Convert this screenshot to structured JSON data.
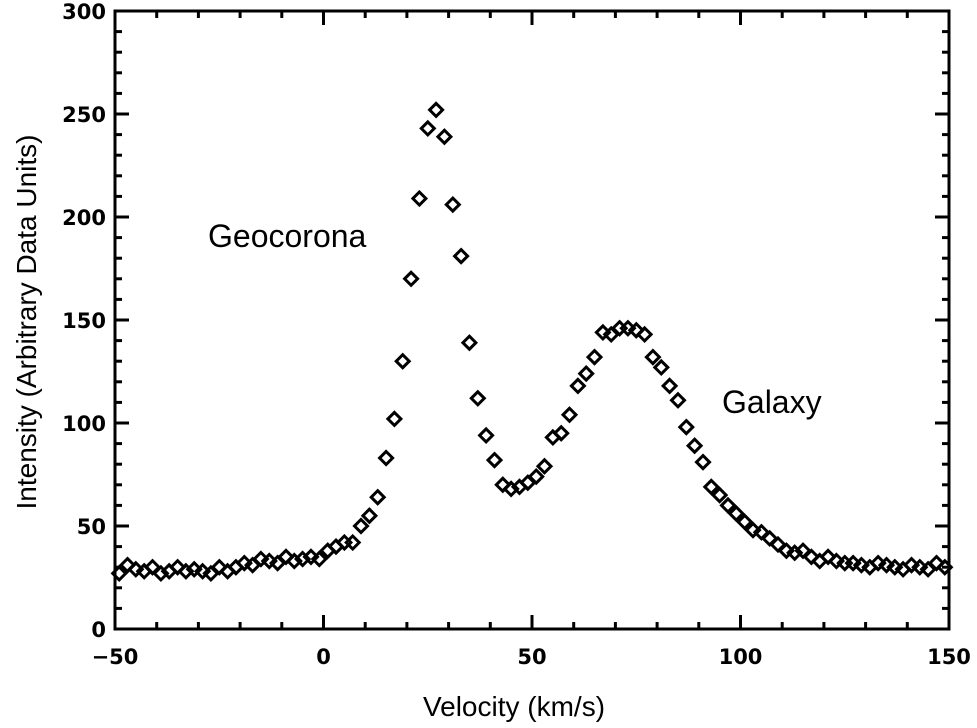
{
  "chart_data": {
    "type": "scatter",
    "title": "",
    "xlabel": "Velocity (km/s)",
    "ylabel": "Intensity (Arbitrary Data Units)",
    "xlim": [
      -50,
      150
    ],
    "ylim": [
      0,
      300
    ],
    "x_ticks": [
      -50,
      0,
      50,
      100,
      150
    ],
    "x_tick_labels": [
      "−50",
      "0",
      "50",
      "100",
      "150"
    ],
    "y_ticks": [
      0,
      50,
      100,
      150,
      200,
      250,
      300
    ],
    "y_tick_labels": [
      "0",
      "50",
      "100",
      "150",
      "200",
      "250",
      "300"
    ],
    "grid": false,
    "marker": "open-diamond",
    "annotations": [
      {
        "text": "Geocorona",
        "x": -27,
        "y": 187
      },
      {
        "text": "Galaxy",
        "x": 96,
        "y": 105
      }
    ],
    "series": [
      {
        "x": [
          -49,
          -47,
          -45,
          -43,
          -41,
          -39,
          -37,
          -35,
          -33,
          -31,
          -29,
          -27,
          -25,
          -23,
          -21,
          -19,
          -17,
          -15,
          -13,
          -11,
          -9,
          -7,
          -5,
          -3,
          -1,
          1,
          3,
          5,
          7,
          9,
          11,
          13,
          15,
          17,
          19,
          21,
          23,
          25,
          27,
          29,
          31,
          33,
          35,
          37,
          39,
          41,
          43,
          45,
          47,
          49,
          51,
          53,
          55,
          57,
          59,
          61,
          63,
          65,
          67,
          69,
          71,
          73,
          75,
          77,
          79,
          81,
          83,
          85,
          87,
          89,
          91,
          93,
          95,
          97,
          99,
          101,
          103,
          105,
          107,
          109,
          111,
          113,
          115,
          117,
          119,
          121,
          123,
          125,
          127,
          129,
          131,
          133,
          135,
          137,
          139,
          141,
          143,
          145,
          147,
          149
        ],
        "y": [
          27,
          31,
          29,
          28,
          30,
          27,
          28,
          30,
          28,
          29,
          28,
          27,
          30,
          28,
          30,
          32,
          31,
          34,
          33,
          32,
          35,
          33,
          34,
          35,
          34,
          38,
          40,
          42,
          42,
          50,
          55,
          64,
          83,
          102,
          130,
          170,
          209,
          243,
          252,
          239,
          206,
          181,
          139,
          112,
          94,
          82,
          70,
          68,
          69,
          71,
          74,
          79,
          93,
          95,
          104,
          118,
          124,
          132,
          144,
          143,
          146,
          146,
          145,
          143,
          132,
          127,
          118,
          111,
          98,
          89,
          81,
          69,
          65,
          60,
          56,
          52,
          48,
          47,
          44,
          41,
          38,
          37,
          38,
          35,
          33,
          35,
          33,
          32,
          32,
          31,
          30,
          32,
          31,
          30,
          29,
          31,
          30,
          29,
          32,
          30
        ]
      }
    ]
  }
}
